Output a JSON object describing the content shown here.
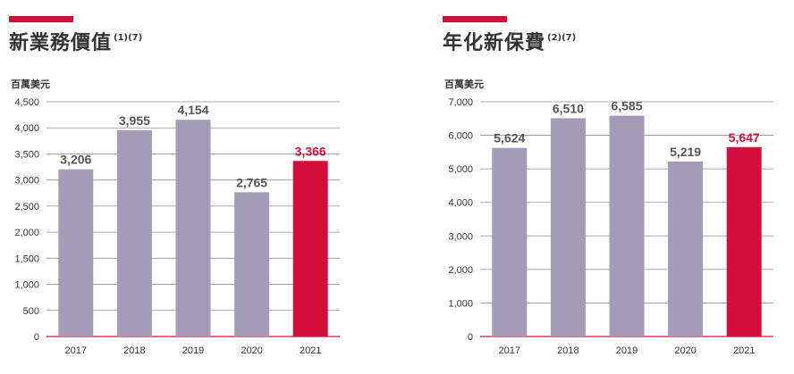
{
  "colors": {
    "bar": "#a49bb8",
    "highlight": "#d0103a",
    "grid": "#8f8f8f",
    "text": "#555555"
  },
  "chart_data": [
    {
      "type": "bar",
      "title": "新業務價值",
      "title_sup": "(1)(7)",
      "ylabel": "百萬美元",
      "categories": [
        "2017",
        "2018",
        "2019",
        "2020",
        "2021"
      ],
      "values": [
        3206,
        3955,
        4154,
        2765,
        3366
      ],
      "value_labels": [
        "3,206",
        "3,955",
        "4,154",
        "2,765",
        "3,366"
      ],
      "highlight_index": 4,
      "ylim": [
        0,
        4500
      ],
      "yticks": [
        0,
        500,
        1000,
        1500,
        2000,
        2500,
        3000,
        3500,
        4000,
        4500
      ],
      "ytick_labels": [
        "0",
        "500",
        "1,000",
        "1,500",
        "2,000",
        "2,500",
        "3,000",
        "3,500",
        "4,000",
        "4,500"
      ],
      "grid": true
    },
    {
      "type": "bar",
      "title": "年化新保費",
      "title_sup": "(2)(7)",
      "ylabel": "百萬美元",
      "categories": [
        "2017",
        "2018",
        "2019",
        "2020",
        "2021"
      ],
      "values": [
        5624,
        6510,
        6585,
        5219,
        5647
      ],
      "value_labels": [
        "5,624",
        "6,510",
        "6,585",
        "5,219",
        "5,647"
      ],
      "highlight_index": 4,
      "ylim": [
        0,
        7000
      ],
      "yticks": [
        0,
        1000,
        2000,
        3000,
        4000,
        5000,
        6000,
        7000
      ],
      "ytick_labels": [
        "0",
        "1,000",
        "2,000",
        "3,000",
        "4,000",
        "5,000",
        "6,000",
        "7,000"
      ],
      "grid": true
    }
  ]
}
